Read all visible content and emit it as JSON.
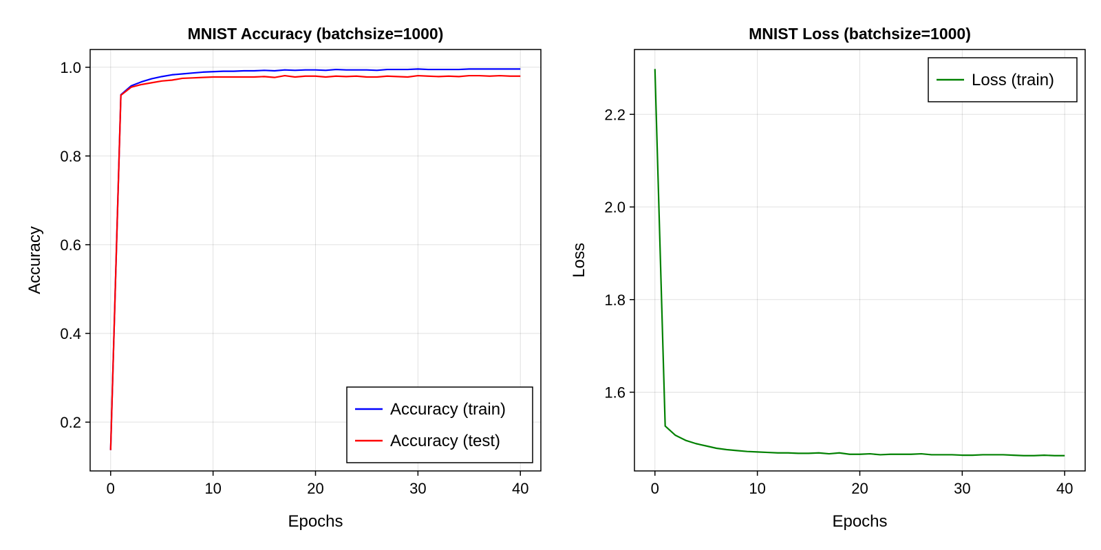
{
  "chart_data": [
    {
      "type": "line",
      "title": "MNIST Accuracy (batchsize=1000)",
      "xlabel": "Epochs",
      "ylabel": "Accuracy",
      "xlim": [
        -2,
        42
      ],
      "ylim": [
        0.09,
        1.04
      ],
      "xticks": [
        0,
        10,
        20,
        30,
        40
      ],
      "yticks": [
        0.2,
        0.4,
        0.6,
        0.8,
        1.0
      ],
      "xtick_labels": [
        "0",
        "10",
        "20",
        "30",
        "40"
      ],
      "ytick_labels": [
        "0.2",
        "0.4",
        "0.6",
        "0.8",
        "1.0"
      ],
      "grid": true,
      "legend": "bottom-right",
      "x": [
        0,
        1,
        2,
        3,
        4,
        5,
        6,
        7,
        8,
        9,
        10,
        11,
        12,
        13,
        14,
        15,
        16,
        17,
        18,
        19,
        20,
        21,
        22,
        23,
        24,
        25,
        26,
        27,
        28,
        29,
        30,
        31,
        32,
        33,
        34,
        35,
        36,
        37,
        38,
        39,
        40
      ],
      "series": [
        {
          "name": "Accuracy (train)",
          "color": "#0000ff",
          "values": [
            0.137,
            0.938,
            0.958,
            0.967,
            0.974,
            0.979,
            0.983,
            0.985,
            0.987,
            0.989,
            0.99,
            0.991,
            0.991,
            0.992,
            0.992,
            0.993,
            0.992,
            0.994,
            0.993,
            0.994,
            0.994,
            0.993,
            0.995,
            0.994,
            0.994,
            0.994,
            0.993,
            0.995,
            0.995,
            0.995,
            0.996,
            0.995,
            0.995,
            0.995,
            0.995,
            0.996,
            0.996,
            0.996,
            0.996,
            0.996,
            0.996
          ]
        },
        {
          "name": "Accuracy (test)",
          "color": "#ff0000",
          "values": [
            0.137,
            0.937,
            0.955,
            0.961,
            0.965,
            0.969,
            0.971,
            0.975,
            0.976,
            0.977,
            0.978,
            0.978,
            0.978,
            0.978,
            0.978,
            0.979,
            0.977,
            0.981,
            0.978,
            0.98,
            0.98,
            0.978,
            0.98,
            0.979,
            0.98,
            0.978,
            0.978,
            0.98,
            0.979,
            0.978,
            0.981,
            0.98,
            0.979,
            0.98,
            0.979,
            0.981,
            0.981,
            0.98,
            0.981,
            0.98,
            0.98
          ]
        }
      ]
    },
    {
      "type": "line",
      "title": "MNIST Loss (batchsize=1000)",
      "xlabel": "Epochs",
      "ylabel": "Loss",
      "xlim": [
        -2,
        42
      ],
      "ylim": [
        1.43,
        2.34
      ],
      "xticks": [
        0,
        10,
        20,
        30,
        40
      ],
      "yticks": [
        1.6,
        1.8,
        2.0,
        2.2
      ],
      "xtick_labels": [
        "0",
        "10",
        "20",
        "30",
        "40"
      ],
      "ytick_labels": [
        "1.6",
        "1.8",
        "2.0",
        "2.2"
      ],
      "grid": true,
      "legend": "top-right",
      "x": [
        0,
        1,
        2,
        3,
        4,
        5,
        6,
        7,
        8,
        9,
        10,
        11,
        12,
        13,
        14,
        15,
        16,
        17,
        18,
        19,
        20,
        21,
        22,
        23,
        24,
        25,
        26,
        27,
        28,
        29,
        30,
        31,
        32,
        33,
        34,
        35,
        36,
        37,
        38,
        39,
        40
      ],
      "series": [
        {
          "name": "Loss (train)",
          "color": "#008000",
          "values": [
            2.298,
            1.527,
            1.507,
            1.496,
            1.489,
            1.484,
            1.479,
            1.476,
            1.474,
            1.472,
            1.471,
            1.47,
            1.469,
            1.469,
            1.468,
            1.468,
            1.469,
            1.467,
            1.469,
            1.466,
            1.466,
            1.467,
            1.465,
            1.466,
            1.466,
            1.466,
            1.467,
            1.465,
            1.465,
            1.465,
            1.464,
            1.464,
            1.465,
            1.465,
            1.465,
            1.464,
            1.463,
            1.463,
            1.464,
            1.463,
            1.463
          ]
        }
      ]
    }
  ]
}
